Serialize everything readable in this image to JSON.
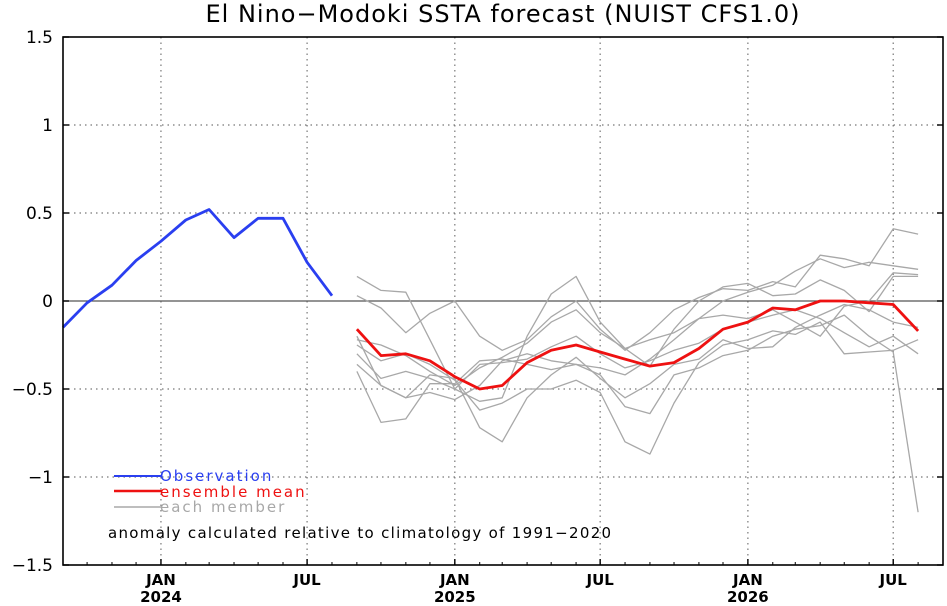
{
  "chart_data": {
    "type": "line",
    "title": "El Nino−Modoki SSTA forecast (NUIST CFS1.0)",
    "ylim": [
      -1.5,
      1.5
    ],
    "xlim": [
      "2023-09-15",
      "2026-09-15"
    ],
    "grid": true,
    "y_ticks": [
      "1.5",
      "1",
      "0.5",
      "0",
      "−0.5",
      "−1",
      "−1.5"
    ],
    "y_tick_values": [
      1.5,
      1,
      0.5,
      0,
      -0.5,
      -1,
      -1.5
    ],
    "x_ticks": [
      {
        "date": "2024-01-15",
        "label": "JAN",
        "year": "2024"
      },
      {
        "date": "2024-07-15",
        "label": "JUL",
        "year": ""
      },
      {
        "date": "2025-01-15",
        "label": "JAN",
        "year": "2025"
      },
      {
        "date": "2025-07-15",
        "label": "JUL",
        "year": ""
      },
      {
        "date": "2026-01-15",
        "label": "JAN",
        "year": "2026"
      },
      {
        "date": "2026-07-15",
        "label": "JUL",
        "year": ""
      }
    ],
    "legend": {
      "placement": "bottom-left",
      "observation": "Observation",
      "ensemble_mean": "ensemble mean",
      "each_member": "each member"
    },
    "annotation": "anomaly calculated relative to climatology of 1991−2020",
    "colors": {
      "observation": "#2a3ff0",
      "ensemble_mean": "#ee1111",
      "members": "#a8a8a8"
    },
    "observation": {
      "x": [
        "2023-09-15",
        "2023-10-15",
        "2023-11-15",
        "2023-12-15",
        "2024-01-15",
        "2024-02-15",
        "2024-03-15",
        "2024-04-15",
        "2024-05-15",
        "2024-06-15",
        "2024-07-15",
        "2024-08-15"
      ],
      "y": [
        -0.15,
        -0.01,
        0.09,
        0.23,
        0.34,
        0.46,
        0.52,
        0.36,
        0.47,
        0.47,
        0.22,
        0.03
      ]
    },
    "forecast_x": [
      "2024-09-15",
      "2024-10-15",
      "2024-11-15",
      "2024-12-15",
      "2025-01-15",
      "2025-02-15",
      "2025-03-15",
      "2025-04-15",
      "2025-05-15",
      "2025-06-15",
      "2025-07-15",
      "2025-08-15",
      "2025-09-15",
      "2025-10-15",
      "2025-11-15",
      "2025-12-15",
      "2026-01-15",
      "2026-02-15",
      "2026-03-15",
      "2026-04-15",
      "2026-05-15",
      "2026-06-15",
      "2026-07-15",
      "2026-08-15"
    ],
    "ensemble_mean": [
      -0.16,
      -0.31,
      -0.3,
      -0.34,
      -0.43,
      -0.5,
      -0.48,
      -0.35,
      -0.28,
      -0.25,
      -0.29,
      -0.33,
      -0.37,
      -0.35,
      -0.27,
      -0.16,
      -0.12,
      -0.04,
      -0.05,
      0.0,
      0.0,
      -0.01,
      -0.02,
      -0.17
    ],
    "members": [
      [
        0.14,
        0.06,
        0.05,
        -0.22,
        -0.5,
        -0.57,
        -0.55,
        -0.2,
        0.04,
        0.14,
        -0.12,
        -0.27,
        -0.37,
        -0.16,
        0.0,
        0.08,
        0.1,
        0.03,
        0.04,
        0.12,
        0.06,
        -0.06,
        0.14,
        0.14
      ],
      [
        0.03,
        -0.04,
        -0.18,
        -0.07,
        0.0,
        -0.2,
        -0.28,
        -0.22,
        -0.09,
        0.0,
        -0.16,
        -0.28,
        -0.18,
        -0.05,
        0.02,
        0.07,
        0.06,
        0.11,
        0.08,
        0.26,
        0.24,
        0.2,
        0.41,
        0.38
      ],
      [
        -0.22,
        -0.25,
        -0.31,
        -0.4,
        -0.48,
        -0.38,
        -0.32,
        -0.24,
        -0.12,
        -0.05,
        -0.18,
        -0.27,
        -0.22,
        -0.18,
        -0.1,
        0.0,
        0.05,
        0.09,
        0.17,
        0.24,
        0.19,
        0.22,
        0.2,
        0.18
      ],
      [
        -0.36,
        -0.48,
        -0.55,
        -0.52,
        -0.56,
        -0.48,
        -0.34,
        -0.3,
        -0.34,
        -0.36,
        -0.38,
        -0.42,
        -0.33,
        -0.22,
        -0.1,
        -0.08,
        -0.1,
        -0.05,
        -0.12,
        -0.2,
        -0.03,
        0.0,
        0.16,
        0.15
      ],
      [
        -0.4,
        -0.69,
        -0.67,
        -0.47,
        -0.47,
        -0.34,
        -0.33,
        -0.36,
        -0.39,
        -0.36,
        -0.42,
        -0.6,
        -0.64,
        -0.42,
        -0.38,
        -0.31,
        -0.28,
        -0.2,
        -0.16,
        -0.14,
        -0.08,
        -0.2,
        -0.29,
        -1.2
      ],
      [
        -0.25,
        -0.34,
        -0.3,
        -0.36,
        -0.45,
        -0.62,
        -0.58,
        -0.5,
        -0.5,
        -0.45,
        -0.52,
        -0.8,
        -0.87,
        -0.58,
        -0.35,
        -0.25,
        -0.22,
        -0.17,
        -0.19,
        -0.12,
        -0.3,
        -0.29,
        -0.28,
        -0.22
      ],
      [
        -0.2,
        -0.48,
        -0.55,
        -0.42,
        -0.44,
        -0.72,
        -0.8,
        -0.55,
        -0.42,
        -0.32,
        -0.44,
        -0.55,
        -0.47,
        -0.36,
        -0.33,
        -0.22,
        -0.27,
        -0.26,
        -0.15,
        -0.08,
        -0.02,
        -0.05,
        -0.12,
        -0.15
      ],
      [
        -0.3,
        -0.44,
        -0.4,
        -0.44,
        -0.5,
        -0.36,
        -0.35,
        -0.33,
        -0.26,
        -0.2,
        -0.3,
        -0.38,
        -0.34,
        -0.28,
        -0.24,
        -0.16,
        -0.12,
        -0.08,
        -0.05,
        -0.1,
        -0.18,
        -0.26,
        -0.2,
        -0.3
      ]
    ]
  }
}
